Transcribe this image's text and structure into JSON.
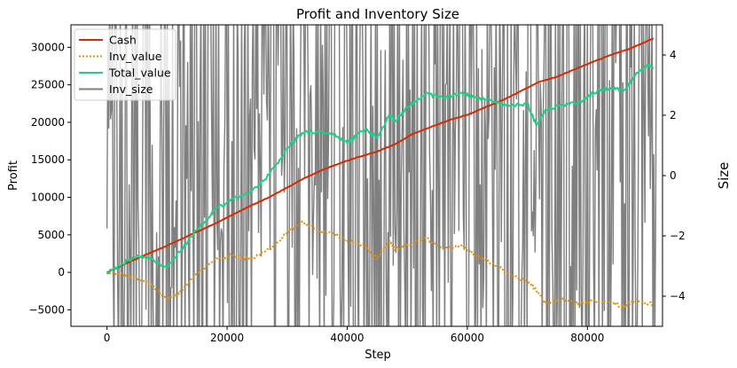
{
  "chart_data": {
    "type": "line",
    "title": "Profit and Inventory Size",
    "xlabel": "Step",
    "ylabel": "Profit",
    "y2label": "Size",
    "xlim": [
      -6000,
      92500
    ],
    "ylim": [
      -7200,
      33000
    ],
    "y2lim": [
      -5,
      5
    ],
    "xticks": [
      0,
      20000,
      40000,
      60000,
      80000
    ],
    "yticks": [
      -5000,
      0,
      5000,
      10000,
      15000,
      20000,
      25000,
      30000
    ],
    "y2ticks": [
      -4,
      -2,
      0,
      2,
      4
    ],
    "legend_position": "top-left",
    "grid": false,
    "series": [
      {
        "name": "Cash",
        "color": "#d62a00",
        "axis": "left",
        "style": "solid",
        "x": [
          0,
          3000,
          6000,
          9000,
          12000,
          15000,
          18000,
          21000,
          24000,
          27000,
          30000,
          33000,
          36000,
          39000,
          42000,
          45000,
          48000,
          51000,
          54000,
          57000,
          60000,
          63000,
          66000,
          69000,
          72000,
          75000,
          78000,
          81000,
          84000,
          87000,
          91000
        ],
        "values": [
          0,
          1100,
          2200,
          3200,
          4300,
          5400,
          6500,
          7700,
          8900,
          10000,
          11300,
          12600,
          13700,
          14600,
          15400,
          16100,
          17100,
          18500,
          19400,
          20300,
          21000,
          22000,
          23000,
          24200,
          25400,
          26100,
          27100,
          28100,
          29000,
          29800,
          31200
        ]
      },
      {
        "name": "Inv_value",
        "color": "#e3900e",
        "axis": "left",
        "style": "dotted",
        "x": [
          0,
          2000,
          5000,
          7500,
          10000,
          12000,
          15000,
          18000,
          21000,
          24000,
          27000,
          30000,
          32500,
          35000,
          38000,
          40000,
          43000,
          45000,
          47000,
          48000,
          50000,
          53000,
          56000,
          59000,
          61000,
          64000,
          67000,
          70000,
          71500,
          73000,
          76000,
          79000,
          81000,
          84000,
          86000,
          88000,
          91000
        ],
        "values": [
          0,
          -200,
          -700,
          -1800,
          -3700,
          -2900,
          -100,
          1800,
          2300,
          1700,
          3000,
          5300,
          6800,
          5600,
          5100,
          4200,
          3600,
          1800,
          4100,
          3000,
          3700,
          4600,
          3200,
          3600,
          2400,
          1300,
          -300,
          -1200,
          -2400,
          -4100,
          -3600,
          -4300,
          -3700,
          -4000,
          -4600,
          -3600,
          -4300
        ]
      },
      {
        "name": "Total_value",
        "color": "#1fcf88",
        "axis": "left",
        "style": "solid",
        "x": [
          0,
          2000,
          5000,
          7500,
          10000,
          12000,
          15000,
          18000,
          21000,
          24000,
          27000,
          30000,
          32500,
          35000,
          38000,
          40000,
          43000,
          45000,
          47000,
          48000,
          50000,
          53000,
          56000,
          59000,
          61000,
          64000,
          67000,
          70000,
          71500,
          73000,
          76000,
          79000,
          81000,
          84000,
          86000,
          88000,
          90000,
          91000
        ],
        "values": [
          0,
          900,
          2200,
          1800,
          600,
          2700,
          5700,
          8300,
          9800,
          10700,
          13000,
          16500,
          18600,
          18800,
          18400,
          17200,
          19100,
          17900,
          21000,
          20100,
          22000,
          23800,
          23200,
          23900,
          23400,
          22900,
          22200,
          22500,
          19600,
          21700,
          22300,
          22700,
          24000,
          24600,
          24200,
          26300,
          27700,
          27200
        ]
      }
    ],
    "secondary_series": {
      "name": "Inv_size",
      "color": "#7f7f7f",
      "axis": "right",
      "note_values": "dense oscillation between -5 and 5",
      "range": [
        -5,
        5
      ]
    }
  }
}
